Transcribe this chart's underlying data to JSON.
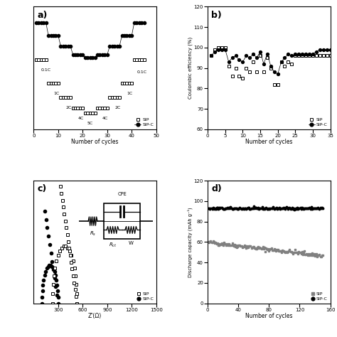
{
  "panel_a": {
    "label": "a)",
    "xlabel": "Number of cycles",
    "xlim": [
      0,
      50
    ],
    "xticks": [
      0,
      10,
      20,
      30,
      40,
      50
    ],
    "sip_rates": [
      0.1,
      1,
      2,
      4,
      5,
      4,
      2,
      1,
      0.1
    ],
    "sip_cap": [
      105,
      83,
      70,
      60,
      55,
      60,
      70,
      83,
      105
    ],
    "sipc_cap": [
      140,
      128,
      118,
      110,
      107,
      110,
      118,
      128,
      140
    ]
  },
  "panel_b": {
    "label": "b)",
    "xlabel": "Number of cycles",
    "ylabel": "Coulombic efficiency (%)",
    "ylim": [
      60,
      120
    ],
    "yticks": [
      60,
      70,
      80,
      90,
      100,
      110,
      120
    ],
    "xlim": [
      0,
      35
    ],
    "xticks": [
      0,
      5,
      10,
      15,
      20,
      25,
      30,
      35
    ],
    "sip_x": [
      1,
      2,
      3,
      4,
      5,
      6,
      7,
      8,
      9,
      10,
      11,
      12,
      13,
      14,
      15,
      16,
      17,
      18,
      19,
      20,
      21,
      22,
      23,
      24,
      25,
      26,
      27,
      28,
      29,
      30,
      31,
      32,
      33,
      34,
      35
    ],
    "sip_y": [
      96,
      99,
      100,
      100,
      100,
      91,
      86,
      90,
      86,
      85,
      90,
      88,
      93,
      88,
      96,
      88,
      95,
      90,
      82,
      82,
      93,
      91,
      93,
      92,
      96,
      96,
      96,
      96,
      96,
      96,
      96,
      96,
      96,
      96,
      96
    ],
    "sipc_x": [
      1,
      2,
      3,
      4,
      5,
      6,
      7,
      8,
      9,
      10,
      11,
      12,
      13,
      14,
      15,
      16,
      17,
      18,
      19,
      20,
      21,
      22,
      23,
      24,
      25,
      26,
      27,
      28,
      29,
      30,
      31,
      32,
      33,
      34,
      35
    ],
    "sipc_y": [
      96,
      98,
      99,
      99,
      99,
      93,
      95,
      96,
      94,
      93,
      96,
      95,
      97,
      95,
      98,
      92,
      97,
      91,
      88,
      87,
      93,
      95,
      97,
      96,
      97,
      97,
      97,
      97,
      97,
      97,
      98,
      99,
      99,
      99,
      99
    ]
  },
  "panel_c": {
    "label": "c)",
    "xlabel": "Z'(Ω)",
    "xlim": [
      0,
      1500
    ],
    "xticks": [
      300,
      600,
      900,
      1200,
      1500
    ]
  },
  "panel_d": {
    "label": "d)",
    "xlabel": "Number of cycles",
    "ylabel": "Discharge capacity (mAh g⁻¹)",
    "ylim": [
      0,
      120
    ],
    "yticks": [
      0,
      20,
      40,
      60,
      80,
      100,
      120
    ],
    "xlim": [
      0,
      160
    ],
    "xticks": [
      0,
      40,
      80,
      120,
      160
    ],
    "sip_x_long": [
      1,
      3,
      5,
      7,
      9,
      11,
      13,
      15,
      17,
      19,
      21,
      23,
      25,
      27,
      29,
      31,
      33,
      35,
      37,
      39,
      41,
      43,
      45,
      47,
      49,
      51,
      55,
      60,
      65,
      70,
      75,
      80,
      85,
      90,
      95,
      100,
      105,
      110,
      115,
      120,
      125,
      130,
      135,
      140,
      145,
      150
    ],
    "sip_y_long": [
      60,
      60,
      59,
      59,
      59,
      58,
      58,
      57,
      57,
      57,
      56,
      56,
      56,
      55,
      55,
      55,
      54,
      54,
      54,
      53,
      53,
      53,
      52,
      52,
      52,
      51,
      51,
      51,
      50,
      50,
      50,
      50,
      50,
      49,
      49,
      49,
      49,
      48,
      48,
      48,
      47,
      47,
      47,
      46,
      46,
      46
    ],
    "sipc_x_long": [
      1,
      3,
      5,
      7,
      9,
      11,
      13,
      15,
      17,
      19,
      21,
      23,
      25,
      27,
      29,
      31,
      33,
      35,
      37,
      39,
      41,
      43,
      45,
      47,
      49,
      51,
      55,
      60,
      65,
      70,
      75,
      80,
      85,
      90,
      95,
      100,
      105,
      110,
      115,
      120,
      125,
      130,
      135,
      140,
      145,
      150
    ],
    "sipc_y_long": [
      93,
      93,
      93,
      93,
      93,
      93,
      93,
      93,
      93,
      93,
      93,
      93,
      93,
      93,
      93,
      93,
      93,
      93,
      93,
      93,
      93,
      93,
      93,
      93,
      93,
      93,
      93,
      93,
      93,
      93,
      93,
      93,
      93,
      93,
      93,
      93,
      93,
      93,
      93,
      93,
      93,
      93,
      93,
      93,
      93,
      93
    ]
  },
  "bg_color": "#ffffff",
  "legend_sip": "SIP",
  "legend_sipc": "SIP-C"
}
